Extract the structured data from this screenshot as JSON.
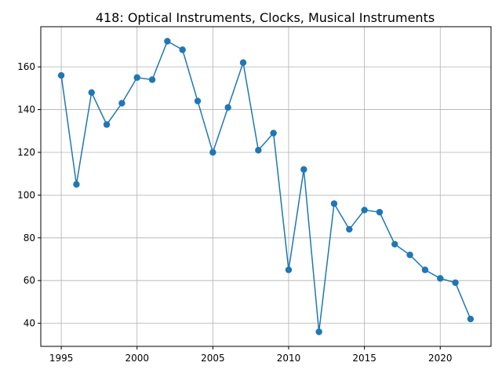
{
  "chart_data": {
    "type": "line",
    "title": "418: Optical Instruments, Clocks, Musical Instruments",
    "xlabel": "",
    "ylabel": "",
    "xlim": [
      1993.65,
      2023.35
    ],
    "ylim": [
      29.2,
      178.8
    ],
    "xticks": [
      1995,
      2000,
      2005,
      2010,
      2015,
      2020
    ],
    "yticks": [
      40,
      60,
      80,
      100,
      120,
      140,
      160
    ],
    "grid": true,
    "color": "#1f77b4",
    "marker": "circle",
    "x": [
      1995,
      1996,
      1997,
      1998,
      1999,
      2000,
      2001,
      2002,
      2003,
      2004,
      2005,
      2006,
      2007,
      2008,
      2009,
      2010,
      2011,
      2012,
      2013,
      2014,
      2015,
      2016,
      2017,
      2018,
      2019,
      2020,
      2021,
      2022
    ],
    "y": [
      156,
      105,
      148,
      133,
      143,
      155,
      154,
      172,
      168,
      144,
      120,
      141,
      162,
      121,
      129,
      65,
      112,
      36,
      96,
      84,
      93,
      92,
      77,
      72,
      65,
      61,
      59,
      42
    ]
  }
}
